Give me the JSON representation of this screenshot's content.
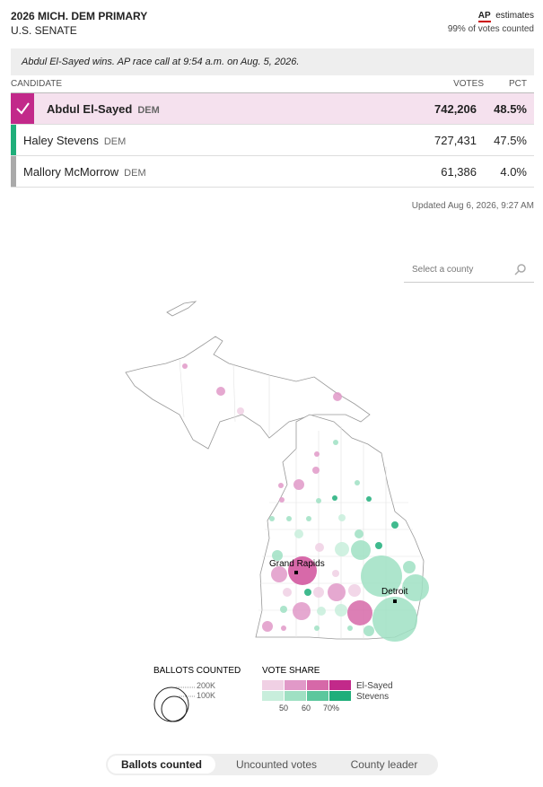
{
  "header": {
    "title": "2026 MICH. DEM PRIMARY",
    "subtitle": "U.S. SENATE",
    "source": "AP",
    "estimates": "estimates",
    "reporting": "99% of votes counted"
  },
  "call": "Abdul El-Sayed wins. AP race call at 9:54 a.m. on Aug. 5, 2026.",
  "table": {
    "columns": [
      "CANDIDATE",
      "VOTES",
      "PCT"
    ],
    "rows": [
      {
        "name": "Abdul El-Sayed",
        "party": "DEM",
        "votes": "742,206",
        "pct": "48.5%"
      },
      {
        "name": "Haley Stevens",
        "party": "DEM",
        "votes": "727,431",
        "pct": "47.5%"
      },
      {
        "name": "Mallory McMorrow",
        "party": "DEM",
        "votes": "61,386",
        "pct": "4.0%"
      }
    ]
  },
  "updated": "Updated Aug 6, 2026, 9:27 AM",
  "search": "Select a county",
  "map": {
    "cities": [
      "Grand Rapids",
      "Detroit"
    ]
  },
  "legend": {
    "ballots_title": "BALLOTS COUNTED",
    "sizes": [
      "200K",
      "100K"
    ],
    "share_title": "VOTE SHARE",
    "names": [
      "El-Sayed",
      "Stevens"
    ],
    "ticks": [
      "50",
      "60",
      "70%"
    ]
  },
  "tabs": [
    "Ballots counted",
    "Uncounted votes",
    "County leader"
  ]
}
